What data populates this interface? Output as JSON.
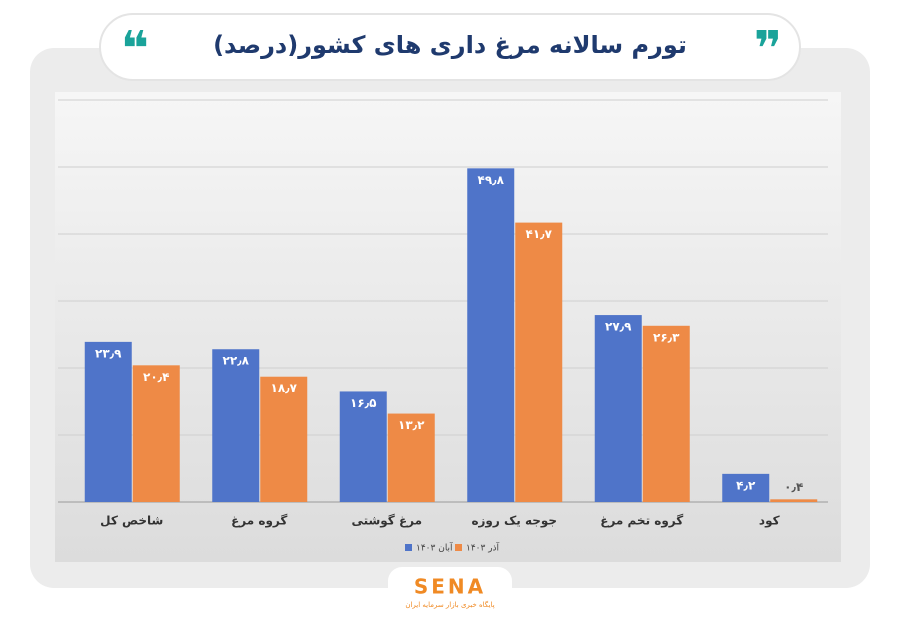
{
  "chart_data": {
    "type": "bar",
    "title": "تورم سالانه مرغ داری های کشور(درصد)",
    "categories": [
      "شاخص کل",
      "گروه مرغ",
      "مرغ گوشتی",
      "جوجه یک روزه",
      "گروه تخم مرغ",
      "کود"
    ],
    "series": [
      {
        "name": "آبان ۱۴۰۳",
        "color": "#4f74c9",
        "values": [
          23.9,
          22.8,
          16.5,
          49.8,
          27.9,
          4.2
        ],
        "value_labels": [
          "۲۳٫۹",
          "۲۲٫۸",
          "۱۶٫۵",
          "۴۹٫۸",
          "۲۷٫۹",
          "۴٫۲"
        ]
      },
      {
        "name": "آذر ۱۴۰۳",
        "color": "#ee8a46",
        "values": [
          20.4,
          18.7,
          13.2,
          41.7,
          26.3,
          0.4
        ],
        "value_labels": [
          "۲۰٫۴",
          "۱۸٫۷",
          "۱۳٫۲",
          "۴۱٫۷",
          "۲۶٫۳",
          "۰٫۴"
        ]
      }
    ],
    "ylim": [
      0,
      60
    ],
    "yticks": [
      0,
      10,
      20,
      30,
      40,
      50,
      60
    ],
    "grid": true,
    "legend": "bottom"
  },
  "logo": {
    "name": "SENA",
    "tagline": "پایگاه خبری بازار سرمایه ایران"
  }
}
